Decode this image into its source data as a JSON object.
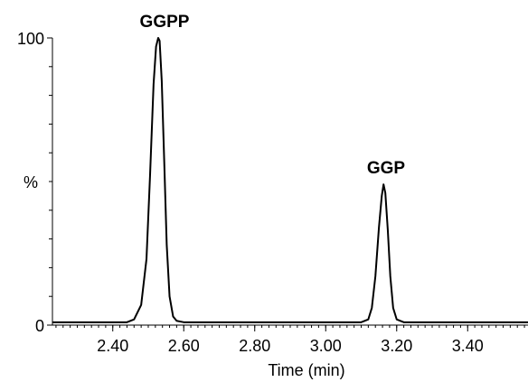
{
  "chart_data": {
    "type": "line",
    "xlabel": "Time (min)",
    "ylabel": "%",
    "xlim": [
      2.23,
      3.57
    ],
    "ylim": [
      0,
      100
    ],
    "x_ticks": [
      2.4,
      2.6,
      2.8,
      3.0,
      3.2,
      3.4
    ],
    "x_tick_labels": [
      "2.40",
      "2.60",
      "2.80",
      "3.00",
      "3.20",
      "3.40"
    ],
    "y_tick_labels": [
      {
        "value": 100,
        "label": "100"
      },
      {
        "value": 0,
        "label": "0"
      }
    ],
    "grid": false,
    "line_color": "#000000",
    "annotations": [
      {
        "text": "GGPP",
        "x": 2.53,
        "y": 100
      },
      {
        "text": "GGP",
        "x": 3.16,
        "y": 49
      }
    ],
    "series": [
      {
        "x": [
          2.23,
          2.3,
          2.38,
          2.44,
          2.46,
          2.48,
          2.495,
          2.505,
          2.515,
          2.522,
          2.528,
          2.532,
          2.538,
          2.545,
          2.552,
          2.56,
          2.57,
          2.58,
          2.6,
          2.65,
          2.75,
          2.85,
          2.95,
          3.05,
          3.1,
          3.12,
          3.13,
          3.14,
          3.15,
          3.158,
          3.163,
          3.168,
          3.175,
          3.182,
          3.19,
          3.2,
          3.22,
          3.3,
          3.4,
          3.57
        ],
        "y": [
          1,
          1,
          1,
          1,
          2,
          7,
          23,
          52,
          84,
          97,
          100,
          99,
          85,
          57,
          28,
          10,
          3,
          1.5,
          1,
          1,
          1,
          1,
          1,
          1,
          1,
          2,
          6,
          17,
          34,
          45,
          49,
          46,
          33,
          17,
          6,
          2,
          1,
          1,
          1,
          1
        ]
      }
    ]
  }
}
